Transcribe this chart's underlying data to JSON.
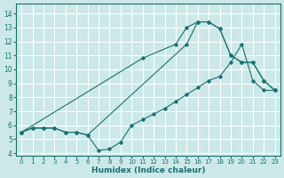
{
  "xlabel": "Humidex (Indice chaleur)",
  "bg_color": "#cce8e8",
  "grid_color": "#ffffff",
  "line_color": "#1a7070",
  "xlim": [
    -0.5,
    23.5
  ],
  "ylim": [
    3.8,
    14.7
  ],
  "xticks": [
    0,
    1,
    2,
    3,
    4,
    5,
    6,
    7,
    8,
    9,
    10,
    11,
    12,
    13,
    14,
    15,
    16,
    17,
    18,
    19,
    20,
    21,
    22,
    23
  ],
  "yticks": [
    4,
    5,
    6,
    7,
    8,
    9,
    10,
    11,
    12,
    13,
    14
  ],
  "line1_x": [
    0,
    1,
    2,
    3,
    4,
    5,
    6,
    7,
    8,
    9,
    10,
    11,
    12,
    13,
    14,
    15,
    16,
    17,
    18,
    19,
    20,
    21,
    22,
    23
  ],
  "line1_y": [
    5.5,
    5.8,
    5.8,
    5.8,
    5.5,
    5.5,
    5.3,
    4.2,
    4.3,
    4.8,
    6.0,
    6.4,
    6.8,
    7.2,
    7.7,
    8.2,
    8.7,
    9.2,
    9.5,
    10.5,
    11.8,
    9.2,
    8.5,
    8.5
  ],
  "line2_x": [
    0,
    1,
    2,
    3,
    4,
    5,
    6,
    15,
    16,
    17,
    18,
    19,
    20,
    21,
    22,
    23
  ],
  "line2_y": [
    5.5,
    5.8,
    5.8,
    5.8,
    5.5,
    5.5,
    5.3,
    11.8,
    13.4,
    13.4,
    12.9,
    11.0,
    10.5,
    10.5,
    9.2,
    8.5
  ],
  "line3_x": [
    0,
    11,
    14,
    15,
    16,
    17,
    18,
    19,
    20,
    21,
    22,
    23
  ],
  "line3_y": [
    5.5,
    10.8,
    11.8,
    13.0,
    13.4,
    13.4,
    12.9,
    11.0,
    10.5,
    10.5,
    9.2,
    8.5
  ]
}
